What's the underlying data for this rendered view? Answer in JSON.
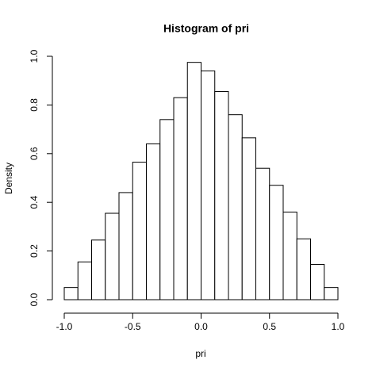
{
  "chart_data": {
    "type": "histogram",
    "title": "Histogram of pri",
    "x_label": "pri",
    "y_label": "Density",
    "bins": [
      -1.0,
      -0.9,
      -0.8,
      -0.7,
      -0.6,
      -0.5,
      -0.4,
      -0.3,
      -0.2,
      -0.1,
      0.0,
      0.1,
      0.2,
      0.3,
      0.4,
      0.5,
      0.6,
      0.7,
      0.8,
      0.9,
      1.0
    ],
    "values": [
      0.05,
      0.155,
      0.245,
      0.355,
      0.44,
      0.565,
      0.64,
      0.74,
      0.83,
      0.975,
      0.94,
      0.855,
      0.76,
      0.665,
      0.54,
      0.47,
      0.36,
      0.25,
      0.145,
      0.05
    ],
    "color": "#ffffff",
    "xlim": [
      -1.0,
      1.0
    ],
    "xticks": [
      {
        "value": -1.0,
        "label": "-1.0"
      },
      -0.5,
      {
        "value": 0.0,
        "label": "0.0"
      },
      0.5,
      {
        "value": 1.0,
        "label": "1.0"
      }
    ],
    "ylim": [
      0.0,
      1.0
    ],
    "yticks": [
      {
        "value": 0.0,
        "label": "0.0"
      },
      0.2,
      0.4,
      0.6,
      0.8,
      {
        "value": 1.0,
        "label": "1.0"
      }
    ],
    "grid": false
  }
}
